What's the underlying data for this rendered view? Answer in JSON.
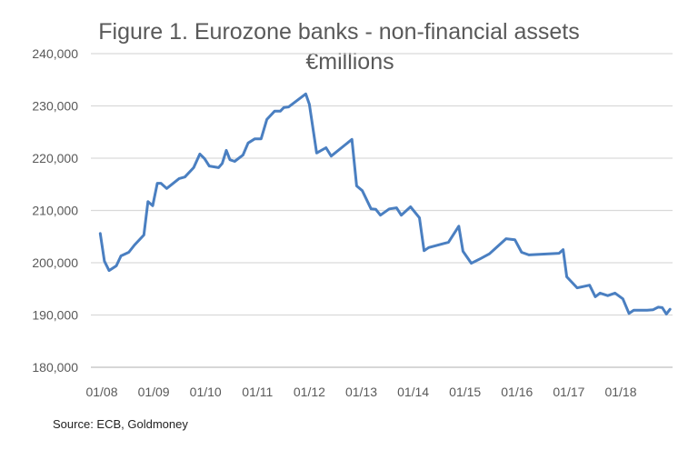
{
  "chart_data": {
    "type": "line",
    "title": "Figure 1. Eurozone banks - non-financial assets",
    "subtitle": "€millions",
    "source": "Source: ECB, Goldmoney",
    "xlabel": "",
    "ylabel": "",
    "ylim": [
      180000,
      240000
    ],
    "xlim": [
      2008,
      2018.95
    ],
    "grid": true,
    "line_color": "#4a7fc1",
    "y_ticks": [
      {
        "value": 180000,
        "label": "180,000"
      },
      {
        "value": 190000,
        "label": "190,000"
      },
      {
        "value": 200000,
        "label": "200,000"
      },
      {
        "value": 210000,
        "label": "210,000"
      },
      {
        "value": 220000,
        "label": "220,000"
      },
      {
        "value": 230000,
        "label": "230,000"
      },
      {
        "value": 240000,
        "label": "240,000"
      }
    ],
    "x_ticks": [
      {
        "value": 2008,
        "label": "01/08"
      },
      {
        "value": 2009,
        "label": "01/09"
      },
      {
        "value": 2010,
        "label": "01/10"
      },
      {
        "value": 2011,
        "label": "01/11"
      },
      {
        "value": 2012,
        "label": "01/12"
      },
      {
        "value": 2013,
        "label": "01/13"
      },
      {
        "value": 2014,
        "label": "01/14"
      },
      {
        "value": 2015,
        "label": "01/15"
      },
      {
        "value": 2016,
        "label": "01/16"
      },
      {
        "value": 2017,
        "label": "01/17"
      },
      {
        "value": 2018,
        "label": "01/18"
      }
    ],
    "series": [
      {
        "name": "Non-financial assets",
        "x": [
          2007.97,
          2008.05,
          2008.14,
          2008.28,
          2008.37,
          2008.52,
          2008.63,
          2008.81,
          2008.89,
          2008.98,
          2009.07,
          2009.14,
          2009.25,
          2009.49,
          2009.6,
          2009.77,
          2009.89,
          2009.98,
          2010.07,
          2010.25,
          2010.32,
          2010.4,
          2010.47,
          2010.56,
          2010.72,
          2010.82,
          2010.95,
          2011.07,
          2011.18,
          2011.33,
          2011.44,
          2011.51,
          2011.6,
          2011.93,
          2012.0,
          2012.14,
          2012.32,
          2012.42,
          2012.82,
          2012.91,
          2013.02,
          2013.19,
          2013.28,
          2013.37,
          2013.54,
          2013.68,
          2013.77,
          2013.95,
          2014.12,
          2014.21,
          2014.3,
          2014.6,
          2014.68,
          2014.88,
          2014.96,
          2015.12,
          2015.3,
          2015.47,
          2015.58,
          2015.79,
          2015.96,
          2016.09,
          2016.23,
          2016.81,
          2016.89,
          2016.96,
          2017.16,
          2017.4,
          2017.51,
          2017.6,
          2017.75,
          2017.89,
          2018.04,
          2018.16,
          2018.25,
          2018.51,
          2018.62,
          2018.72,
          2018.8,
          2018.88,
          2018.95
        ],
        "values": [
          205600,
          200300,
          198500,
          199400,
          201300,
          202000,
          203400,
          205300,
          211700,
          210900,
          215200,
          215200,
          214200,
          216100,
          216400,
          218200,
          220800,
          219900,
          218500,
          218200,
          219000,
          221500,
          219700,
          219400,
          220600,
          222900,
          223700,
          223700,
          227400,
          229000,
          229000,
          229700,
          229800,
          232300,
          230300,
          221000,
          222000,
          220400,
          223600,
          214700,
          213800,
          210300,
          210200,
          209100,
          210300,
          210500,
          209100,
          210700,
          208600,
          202300,
          202900,
          203700,
          203900,
          207000,
          202200,
          199900,
          200800,
          201700,
          202700,
          204600,
          204400,
          202000,
          201500,
          201800,
          202500,
          197300,
          195200,
          195700,
          193500,
          194200,
          193700,
          194200,
          193100,
          190300,
          190900,
          190900,
          191000,
          191500,
          191400,
          190200,
          191100
        ]
      }
    ]
  }
}
